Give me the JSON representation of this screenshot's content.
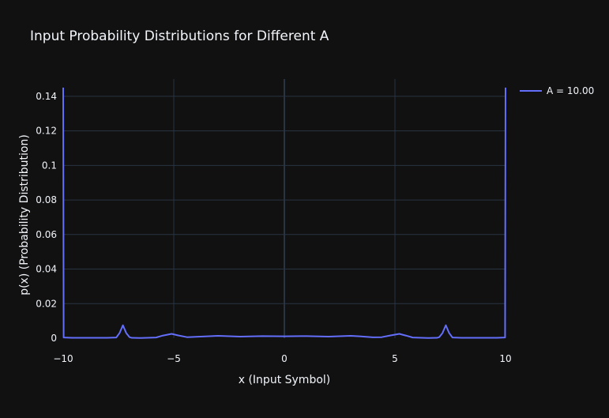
{
  "chart_data": {
    "type": "line",
    "title": "Input Probability Distributions for Different A",
    "xlabel": "x (Input Symbol)",
    "ylabel": "p(x) (Probability Distribution)",
    "xlim": [
      -10,
      10
    ],
    "ylim": [
      0,
      0.15
    ],
    "x_ticks": [
      -10,
      -5,
      0,
      5,
      10
    ],
    "x_tick_labels": [
      "−10",
      "−5",
      "0",
      "5",
      "10"
    ],
    "y_ticks": [
      0,
      0.02,
      0.04,
      0.06,
      0.08,
      0.1,
      0.12,
      0.14
    ],
    "y_tick_labels": [
      "0",
      "0.02",
      "0.04",
      "0.06",
      "0.08",
      "0.1",
      "0.12",
      "0.14"
    ],
    "grid": true,
    "legend_position": "top-right",
    "series": [
      {
        "name": "A = 10.00",
        "color": "#636efa",
        "x": [
          -10,
          -9.98,
          -9.6,
          -8.0,
          -7.6,
          -7.45,
          -7.3,
          -7.15,
          -7.0,
          -6.9,
          -6.5,
          -5.8,
          -5.5,
          -5.1,
          -4.8,
          -4.4,
          -3.8,
          -3.0,
          -2.0,
          -1.0,
          0.0,
          1.0,
          2.0,
          3.0,
          3.4,
          4.0,
          4.4,
          4.8,
          5.2,
          5.5,
          5.8,
          6.5,
          6.9,
          7.0,
          7.15,
          7.3,
          7.45,
          7.6,
          8.0,
          9.6,
          9.98,
          10
        ],
        "y": [
          0.145,
          0.0004,
          0.0002,
          0.0002,
          0.0004,
          0.003,
          0.0075,
          0.003,
          0.0006,
          0.0002,
          0.0001,
          0.0004,
          0.0015,
          0.0025,
          0.0016,
          0.0006,
          0.0009,
          0.0014,
          0.0009,
          0.0012,
          0.0011,
          0.0012,
          0.0009,
          0.0014,
          0.0011,
          0.0005,
          0.0006,
          0.0016,
          0.0025,
          0.0015,
          0.0004,
          0.0001,
          0.0002,
          0.0006,
          0.003,
          0.0075,
          0.003,
          0.0004,
          0.0002,
          0.0002,
          0.0004,
          0.145
        ]
      }
    ]
  },
  "colors": {
    "background": "#111111",
    "grid": "#283442",
    "zeroline": "#283442",
    "text": "#f2f5fa",
    "series": "#636efa"
  }
}
